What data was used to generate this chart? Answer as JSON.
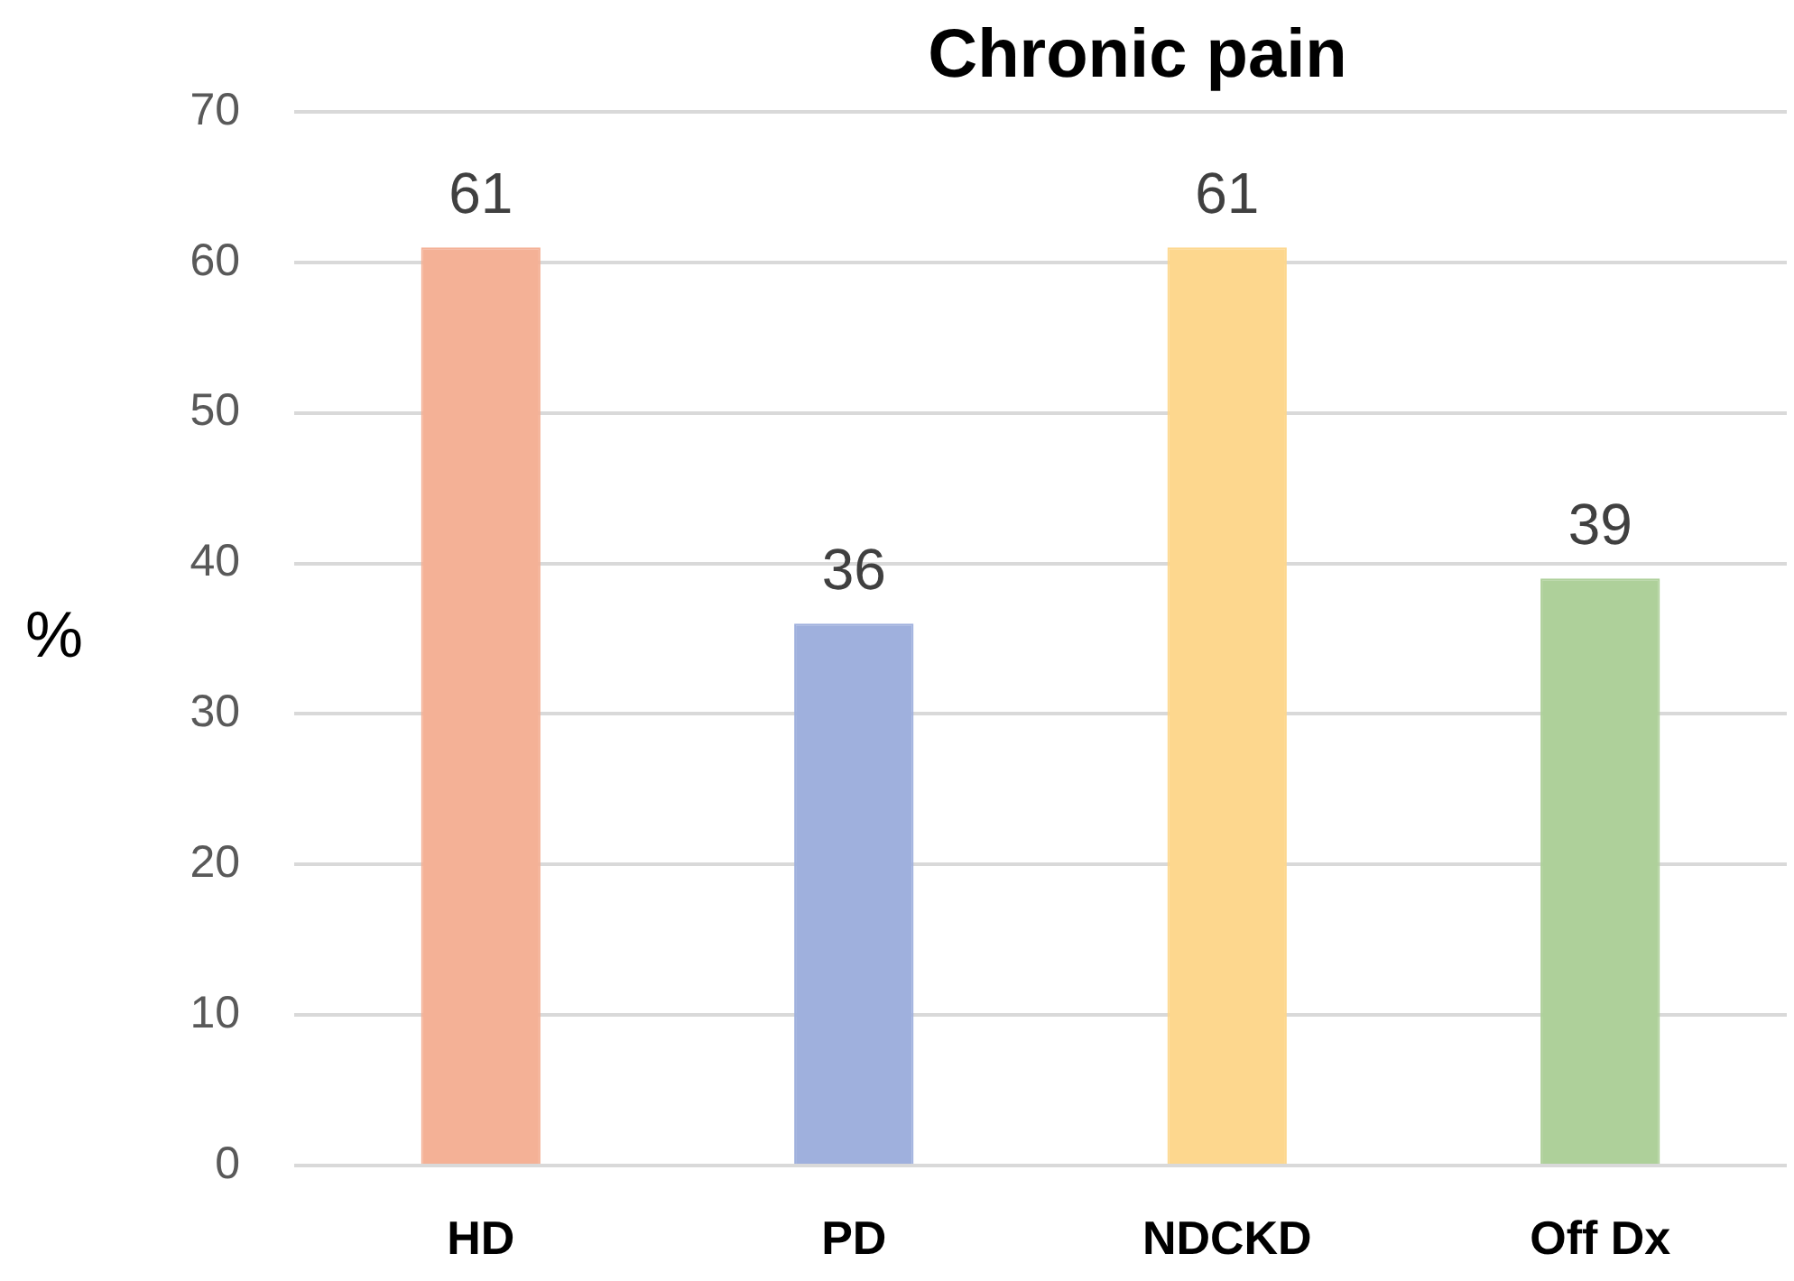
{
  "chart_data": {
    "type": "bar",
    "title": "Chronic pain",
    "ylabel": "%",
    "categories": [
      "HD",
      "PD",
      "NDCKD",
      "Off Dx"
    ],
    "values": [
      61,
      36,
      61,
      39
    ],
    "colors": [
      "#f4b196",
      "#9fb0dd",
      "#fdd78e",
      "#aed09a"
    ],
    "ylim": [
      0,
      70
    ],
    "yticks": [
      0,
      10,
      20,
      30,
      40,
      50,
      60,
      70
    ],
    "grid": "y",
    "data_labels": true
  }
}
